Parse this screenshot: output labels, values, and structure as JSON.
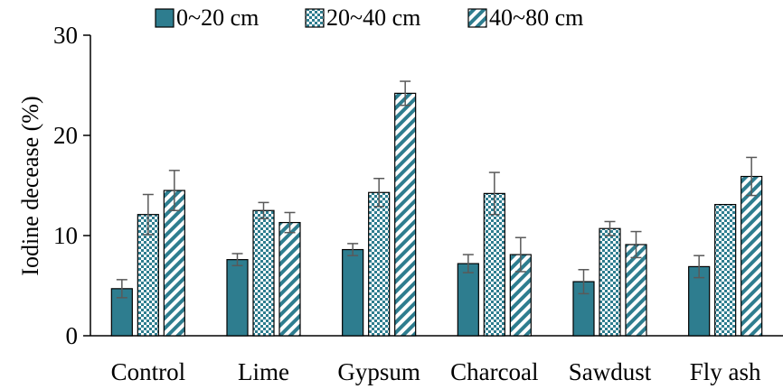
{
  "chart_data": {
    "type": "bar",
    "title": "",
    "xlabel": "",
    "ylabel": "Iodine decease (%)",
    "ylim": [
      0,
      30
    ],
    "yticks": [
      0,
      10,
      20,
      30
    ],
    "grid": false,
    "legend_position": "top",
    "categories": [
      "Control",
      "Lime",
      "Gypsum",
      "Charcoal",
      "Sawdust",
      "Fly ash"
    ],
    "series": [
      {
        "name": "0~20 cm",
        "pattern": "solid",
        "color": "#2E7D8F",
        "values": [
          4.7,
          7.6,
          8.6,
          7.2,
          5.4,
          6.9
        ],
        "errors": [
          0.9,
          0.6,
          0.6,
          0.9,
          1.2,
          1.1
        ]
      },
      {
        "name": "20~40 cm",
        "pattern": "checker",
        "color": "#2E7D8F",
        "values": [
          12.1,
          12.5,
          14.3,
          14.2,
          10.7,
          13.1
        ],
        "errors": [
          2.0,
          0.8,
          1.4,
          2.1,
          0.7,
          0.0
        ]
      },
      {
        "name": "40~80 cm",
        "pattern": "diagonal",
        "color": "#2E7D8F",
        "values": [
          14.5,
          11.3,
          24.2,
          8.1,
          9.1,
          15.9
        ],
        "errors": [
          2.0,
          1.0,
          1.2,
          1.7,
          1.3,
          1.9
        ]
      }
    ]
  }
}
